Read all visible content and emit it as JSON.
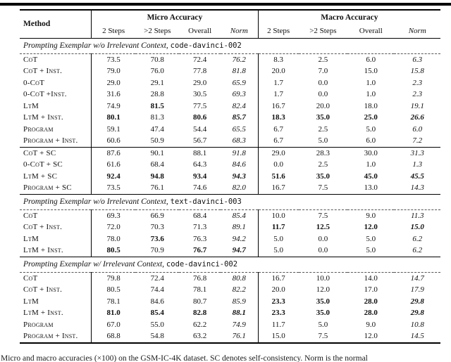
{
  "table": {
    "header": {
      "method": "Method",
      "groups": [
        {
          "label": "Micro Accuracy",
          "cols": [
            "2 Steps",
            ">2 Steps",
            "Overall",
            "Norm"
          ]
        },
        {
          "label": "Macro Accuracy",
          "cols": [
            "2 Steps",
            ">2 Steps",
            "Overall",
            "Norm"
          ]
        }
      ]
    },
    "sections": [
      {
        "title": "Prompting Exemplar w/o Irrelevant Context,",
        "model": "code-davinci-002",
        "groups": [
          {
            "rows": [
              {
                "m": "CoT",
                "v": [
                  "73.5",
                  "70.8",
                  "72.4",
                  "76.2",
                  "8.3",
                  "2.5",
                  "6.0",
                  "6.3"
                ],
                "b": [
                  0,
                  0,
                  0,
                  0,
                  0,
                  0,
                  0,
                  0
                ]
              },
              {
                "m": "CoT + Inst.",
                "v": [
                  "79.0",
                  "76.0",
                  "77.8",
                  "81.8",
                  "20.0",
                  "7.0",
                  "15.0",
                  "15.8"
                ],
                "b": [
                  0,
                  0,
                  0,
                  0,
                  0,
                  0,
                  0,
                  0
                ]
              },
              {
                "m": "0-CoT",
                "v": [
                  "29.0",
                  "29.1",
                  "29.0",
                  "65.9",
                  "1.7",
                  "0.0",
                  "1.0",
                  "2.3"
                ],
                "b": [
                  0,
                  0,
                  0,
                  0,
                  0,
                  0,
                  0,
                  0
                ]
              },
              {
                "m": "0-CoT +Inst.",
                "v": [
                  "31.6",
                  "28.8",
                  "30.5",
                  "69.3",
                  "1.7",
                  "0.0",
                  "1.0",
                  "2.3"
                ],
                "b": [
                  0,
                  0,
                  0,
                  0,
                  0,
                  0,
                  0,
                  0
                ]
              },
              {
                "m": "LtM",
                "v": [
                  "74.9",
                  "81.5",
                  "77.5",
                  "82.4",
                  "16.7",
                  "20.0",
                  "18.0",
                  "19.1"
                ],
                "b": [
                  0,
                  1,
                  0,
                  0,
                  0,
                  0,
                  0,
                  0
                ]
              },
              {
                "m": "LtM + Inst.",
                "v": [
                  "80.1",
                  "81.3",
                  "80.6",
                  "85.7",
                  "18.3",
                  "35.0",
                  "25.0",
                  "26.6"
                ],
                "b": [
                  1,
                  0,
                  1,
                  1,
                  1,
                  1,
                  1,
                  1
                ]
              },
              {
                "m": "Program",
                "v": [
                  "59.1",
                  "47.4",
                  "54.4",
                  "65.5",
                  "6.7",
                  "2.5",
                  "5.0",
                  "6.0"
                ],
                "b": [
                  0,
                  0,
                  0,
                  0,
                  0,
                  0,
                  0,
                  0
                ]
              },
              {
                "m": "Program + Inst.",
                "v": [
                  "60.6",
                  "50.9",
                  "56.7",
                  "68.3",
                  "6.7",
                  "5.0",
                  "6.0",
                  "7.2"
                ],
                "b": [
                  0,
                  0,
                  0,
                  0,
                  0,
                  0,
                  0,
                  0
                ]
              }
            ]
          },
          {
            "rows": [
              {
                "m": "CoT + SC",
                "v": [
                  "87.6",
                  "90.1",
                  "88.1",
                  "91.8",
                  "29.0",
                  "28.3",
                  "30.0",
                  "31.3"
                ],
                "b": [
                  0,
                  0,
                  0,
                  0,
                  0,
                  0,
                  0,
                  0
                ]
              },
              {
                "m": "0-CoT + SC",
                "v": [
                  "61.6",
                  "68.4",
                  "64.3",
                  "84.6",
                  "0.0",
                  "2.5",
                  "1.0",
                  "1.3"
                ],
                "b": [
                  0,
                  0,
                  0,
                  0,
                  0,
                  0,
                  0,
                  0
                ]
              },
              {
                "m": "LtM + SC",
                "v": [
                  "92.4",
                  "94.8",
                  "93.4",
                  "94.3",
                  "51.6",
                  "35.0",
                  "45.0",
                  "45.5"
                ],
                "b": [
                  1,
                  1,
                  1,
                  1,
                  1,
                  1,
                  1,
                  1
                ]
              },
              {
                "m": "Program + SC",
                "v": [
                  "73.5",
                  "76.1",
                  "74.6",
                  "82.0",
                  "16.7",
                  "7.5",
                  "13.0",
                  "14.3"
                ],
                "b": [
                  0,
                  0,
                  0,
                  0,
                  0,
                  0,
                  0,
                  0
                ]
              }
            ]
          }
        ]
      },
      {
        "title": "Prompting Exemplar w/o Irrelevant Context,",
        "model": "text-davinci-003",
        "groups": [
          {
            "rows": [
              {
                "m": "CoT",
                "v": [
                  "69.3",
                  "66.9",
                  "68.4",
                  "85.4",
                  "10.0",
                  "7.5",
                  "9.0",
                  "11.3"
                ],
                "b": [
                  0,
                  0,
                  0,
                  0,
                  0,
                  0,
                  0,
                  0
                ]
              },
              {
                "m": "CoT + Inst.",
                "v": [
                  "72.0",
                  "70.3",
                  "71.3",
                  "89.1",
                  "11.7",
                  "12.5",
                  "12.0",
                  "15.0"
                ],
                "b": [
                  0,
                  0,
                  0,
                  0,
                  1,
                  1,
                  1,
                  1
                ]
              },
              {
                "m": "LtM",
                "v": [
                  "78.0",
                  "73.6",
                  "76.3",
                  "94.2",
                  "5.0",
                  "0.0",
                  "5.0",
                  "6.2"
                ],
                "b": [
                  0,
                  1,
                  0,
                  0,
                  0,
                  0,
                  0,
                  0
                ]
              },
              {
                "m": "LtM + Inst.",
                "v": [
                  "80.5",
                  "70.9",
                  "76.7",
                  "94.7",
                  "5.0",
                  "0.0",
                  "5.0",
                  "6.2"
                ],
                "b": [
                  1,
                  0,
                  1,
                  1,
                  0,
                  0,
                  0,
                  0
                ]
              }
            ]
          }
        ]
      },
      {
        "title": "Prompting Exemplar w/ Irrelevant Context,",
        "model": "code-davinci-002",
        "groups": [
          {
            "rows": [
              {
                "m": "CoT",
                "v": [
                  "79.8",
                  "72.4",
                  "76.8",
                  "80.8",
                  "16.7",
                  "10.0",
                  "14.0",
                  "14.7"
                ],
                "b": [
                  0,
                  0,
                  0,
                  0,
                  0,
                  0,
                  0,
                  0
                ]
              },
              {
                "m": "CoT + Inst.",
                "v": [
                  "80.5",
                  "74.4",
                  "78.1",
                  "82.2",
                  "20.0",
                  "12.0",
                  "17.0",
                  "17.9"
                ],
                "b": [
                  0,
                  0,
                  0,
                  0,
                  0,
                  0,
                  0,
                  0
                ]
              },
              {
                "m": "LtM",
                "v": [
                  "78.1",
                  "84.6",
                  "80.7",
                  "85.9",
                  "23.3",
                  "35.0",
                  "28.0",
                  "29.8"
                ],
                "b": [
                  0,
                  0,
                  0,
                  0,
                  1,
                  1,
                  1,
                  1
                ]
              },
              {
                "m": "LtM + Inst.",
                "v": [
                  "81.0",
                  "85.4",
                  "82.8",
                  "88.1",
                  "23.3",
                  "35.0",
                  "28.0",
                  "29.8"
                ],
                "b": [
                  1,
                  1,
                  1,
                  1,
                  1,
                  1,
                  1,
                  1
                ]
              },
              {
                "m": "Program",
                "v": [
                  "67.0",
                  "55.0",
                  "62.2",
                  "74.9",
                  "11.7",
                  "5.0",
                  "9.0",
                  "10.8"
                ],
                "b": [
                  0,
                  0,
                  0,
                  0,
                  0,
                  0,
                  0,
                  0
                ]
              },
              {
                "m": "Program + Inst.",
                "v": [
                  "68.8",
                  "54.8",
                  "63.2",
                  "76.1",
                  "15.0",
                  "7.5",
                  "12.0",
                  "14.5"
                ],
                "b": [
                  0,
                  0,
                  0,
                  0,
                  0,
                  0,
                  0,
                  0
                ]
              }
            ]
          }
        ]
      }
    ]
  },
  "caption": {
    "text": "Micro and macro accuracies (×100) on the GSM-IC-4K dataset. SC denotes self-consistency. Norm is the normal"
  }
}
